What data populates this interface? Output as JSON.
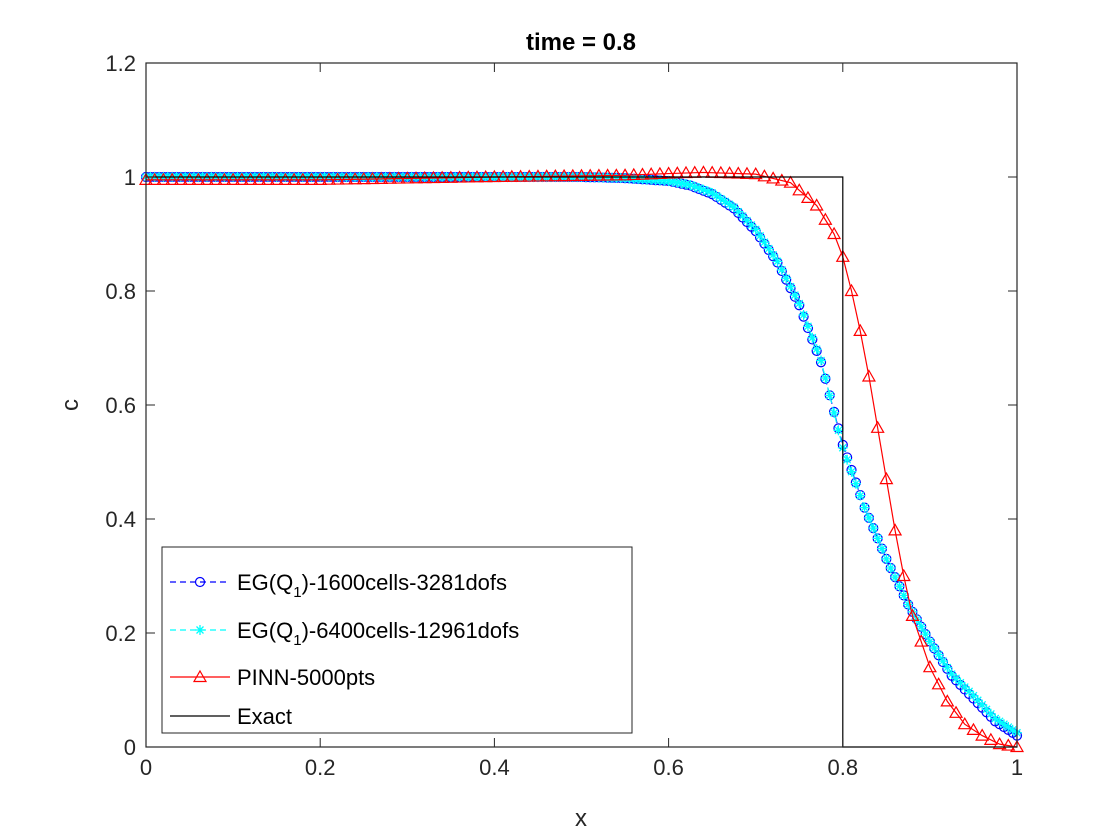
{
  "chart_data": {
    "type": "line",
    "title": "time = 0.8",
    "xlabel": "x",
    "ylabel": "c",
    "xlim": [
      0,
      1
    ],
    "ylim": [
      0,
      1.2
    ],
    "xticks": [
      "0",
      "0.2",
      "0.4",
      "0.6",
      "0.8",
      "1"
    ],
    "yticks": [
      "0",
      "0.2",
      "0.4",
      "0.6",
      "0.8",
      "1",
      "1.2"
    ],
    "grid": false,
    "legend_position": "bottom-left",
    "legend": [
      {
        "prefix": "EG(Q",
        "sub": "1",
        "suffix": ")-1600cells-3281dofs"
      },
      {
        "prefix": "EG(Q",
        "sub": "1",
        "suffix": ")-6400cells-12961dofs"
      },
      {
        "prefix": "PINN-5000pts",
        "sub": "",
        "suffix": ""
      },
      {
        "prefix": "Exact",
        "sub": "",
        "suffix": ""
      }
    ],
    "series": [
      {
        "name": "EG(Q1)-1600cells-3281dofs",
        "color": "#0000ff",
        "marker": "circle",
        "linestyle": "dashed",
        "x": [
          0,
          0.5,
          0.55,
          0.6,
          0.625,
          0.65,
          0.675,
          0.7,
          0.725,
          0.75,
          0.775,
          0.8,
          0.825,
          0.85,
          0.875,
          0.9,
          0.925,
          0.95,
          0.975,
          1.0
        ],
        "y": [
          1.0,
          1.0,
          0.998,
          0.993,
          0.985,
          0.97,
          0.945,
          0.905,
          0.85,
          0.775,
          0.675,
          0.53,
          0.42,
          0.33,
          0.25,
          0.185,
          0.125,
          0.085,
          0.045,
          0.02
        ]
      },
      {
        "name": "EG(Q1)-6400cells-12961dofs",
        "color": "#00ffff",
        "marker": "star",
        "linestyle": "dashed",
        "x": [
          0,
          0.5,
          0.55,
          0.6,
          0.625,
          0.65,
          0.675,
          0.7,
          0.725,
          0.75,
          0.775,
          0.8,
          0.825,
          0.85,
          0.875,
          0.9,
          0.925,
          0.95,
          0.975,
          1.0
        ],
        "y": [
          1.0,
          1.0,
          0.998,
          0.993,
          0.986,
          0.972,
          0.947,
          0.908,
          0.852,
          0.778,
          0.678,
          0.525,
          0.42,
          0.33,
          0.25,
          0.185,
          0.128,
          0.09,
          0.05,
          0.025
        ]
      },
      {
        "name": "PINN-5000pts",
        "color": "#ff0000",
        "marker": "triangle",
        "linestyle": "solid",
        "x": [
          0,
          0.2,
          0.4,
          0.55,
          0.6,
          0.64,
          0.7,
          0.74,
          0.77,
          0.79,
          0.8,
          0.81,
          0.82,
          0.83,
          0.84,
          0.85,
          0.86,
          0.87,
          0.88,
          0.9,
          0.92,
          0.94,
          0.96,
          0.98,
          1.0
        ],
        "y": [
          0.995,
          0.995,
          1.0,
          1.003,
          1.006,
          1.008,
          1.005,
          0.99,
          0.95,
          0.9,
          0.86,
          0.8,
          0.73,
          0.65,
          0.56,
          0.47,
          0.38,
          0.3,
          0.23,
          0.14,
          0.08,
          0.04,
          0.02,
          0.005,
          0.0
        ]
      },
      {
        "name": "Exact",
        "color": "#000000",
        "marker": "none",
        "linestyle": "solid",
        "x": [
          0,
          0.8,
          0.8,
          1.0
        ],
        "y": [
          1.0,
          1.0,
          0.0,
          0.0
        ]
      }
    ]
  }
}
